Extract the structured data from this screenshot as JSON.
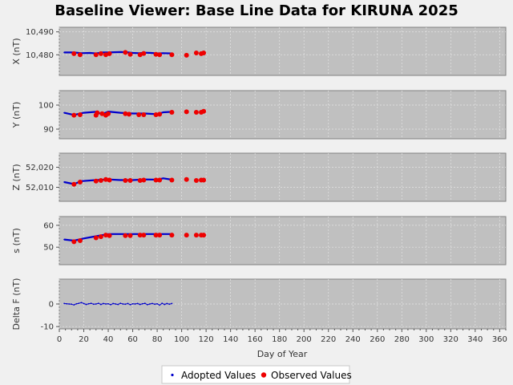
{
  "chart_data": {
    "type": "line",
    "title": "Baseline Viewer: Base Line Data for KIRUNA 2025",
    "xlabel": "Day of Year",
    "xlim": [
      0,
      365
    ],
    "xticks": [
      0,
      20,
      40,
      60,
      80,
      100,
      120,
      140,
      160,
      180,
      200,
      220,
      240,
      260,
      280,
      300,
      320,
      340,
      360
    ],
    "legend": {
      "placement": "bottom-center",
      "entries": [
        {
          "name": "Adopted Values",
          "color": "#0000cc",
          "marker": "small-dot"
        },
        {
          "name": "Observed Values",
          "color": "#ee0000",
          "marker": "dot"
        }
      ]
    },
    "panels": [
      {
        "ylabel": "X (nT)",
        "ylim": [
          10471,
          10492
        ],
        "yticks": [
          10480,
          10490
        ],
        "ytick_labels": [
          "10,480",
          "10,490"
        ],
        "adopted": {
          "x": [
            4,
            12,
            18,
            25,
            30,
            35,
            40,
            45,
            50,
            55,
            60,
            65,
            70,
            75,
            80,
            85,
            92
          ],
          "y": [
            10481.0,
            10481.0,
            10480.7,
            10480.8,
            10480.6,
            10481.0,
            10481.0,
            10481.1,
            10481.2,
            10481.1,
            10480.8,
            10480.7,
            10480.9,
            10480.8,
            10480.6,
            10480.7,
            10480.6
          ]
        },
        "observed": {
          "x": [
            12,
            17,
            30,
            34,
            38,
            41,
            54,
            58,
            66,
            69,
            79,
            82,
            92,
            104,
            112,
            116,
            118
          ],
          "y": [
            10480.5,
            10480.0,
            10480.0,
            10480.5,
            10480.0,
            10480.5,
            10481.0,
            10480.2,
            10480.0,
            10480.6,
            10480.2,
            10480.0,
            10480.0,
            10479.8,
            10480.8,
            10480.5,
            10480.8
          ]
        }
      },
      {
        "ylabel": "Y (nT)",
        "ylim": [
          86,
          106
        ],
        "yticks": [
          90,
          100
        ],
        "ytick_labels": [
          "90",
          "100"
        ],
        "adopted": {
          "x": [
            4,
            12,
            20,
            30,
            35,
            40,
            50,
            60,
            70,
            80,
            85,
            92
          ],
          "y": [
            96.8,
            95.9,
            96.8,
            97.2,
            96.2,
            97.3,
            96.8,
            96.5,
            96.5,
            96.2,
            97.0,
            97.2
          ]
        },
        "observed": {
          "x": [
            12,
            17,
            30,
            31,
            35,
            38,
            40,
            54,
            57,
            65,
            69,
            79,
            82,
            92,
            104,
            112,
            116,
            118
          ],
          "y": [
            95.8,
            96.0,
            95.8,
            96.8,
            96.4,
            95.8,
            96.4,
            96.4,
            96.2,
            96.0,
            96.0,
            96.0,
            96.2,
            97.0,
            97.2,
            97.0,
            97.0,
            97.4
          ]
        }
      },
      {
        "ylabel": "Z (nT)",
        "ylim": [
          52003,
          52027
        ],
        "yticks": [
          52010,
          52020
        ],
        "ytick_labels": [
          "52,010",
          "52,020"
        ],
        "adopted": {
          "x": [
            4,
            12,
            18,
            30,
            40,
            50,
            60,
            70,
            80,
            85,
            92
          ],
          "y": [
            52012.6,
            52011.6,
            52013.1,
            52013.6,
            52013.9,
            52013.6,
            52013.6,
            52013.9,
            52013.8,
            52014.5,
            52013.8
          ]
        },
        "observed": {
          "x": [
            12,
            17,
            30,
            34,
            38,
            41,
            54,
            58,
            66,
            69,
            79,
            82,
            92,
            104,
            112,
            116,
            118
          ],
          "y": [
            52011.5,
            52012.6,
            52013.1,
            52013.4,
            52013.9,
            52013.6,
            52013.4,
            52013.4,
            52013.4,
            52013.6,
            52013.6,
            52013.6,
            52013.6,
            52013.9,
            52013.4,
            52013.6,
            52013.6
          ]
        }
      },
      {
        "ylabel": "s (nT)",
        "ylim": [
          42,
          64
        ],
        "yticks": [
          50,
          60
        ],
        "ytick_labels": [
          "50",
          "60"
        ],
        "adopted": {
          "x": [
            4,
            12,
            20,
            30,
            35,
            40,
            50,
            60,
            70,
            80,
            85,
            92
          ],
          "y": [
            53.5,
            53.0,
            54.0,
            55.0,
            55.5,
            56.0,
            56.0,
            56.0,
            56.0,
            56.0,
            56.0,
            56.0
          ]
        },
        "observed": {
          "x": [
            12,
            17,
            30,
            34,
            38,
            41,
            54,
            58,
            66,
            69,
            79,
            82,
            92,
            104,
            112,
            116,
            118
          ],
          "y": [
            52.5,
            53.0,
            54.3,
            54.8,
            55.5,
            55.3,
            55.3,
            55.3,
            55.5,
            55.5,
            55.5,
            55.5,
            55.5,
            55.5,
            55.5,
            55.5,
            55.5
          ]
        }
      },
      {
        "ylabel": "Delta F (nT)",
        "ylim": [
          -11,
          11
        ],
        "yticks": [
          -10,
          0
        ],
        "ytick_labels": [
          "-10",
          "0"
        ],
        "adopted": {
          "x": [
            4,
            6,
            8,
            10,
            12,
            14,
            16,
            18,
            20,
            22,
            24,
            26,
            28,
            30,
            32,
            34,
            36,
            38,
            40,
            42,
            44,
            46,
            48,
            50,
            52,
            54,
            56,
            58,
            60,
            62,
            64,
            66,
            68,
            70,
            72,
            74,
            76,
            78,
            80,
            82,
            84,
            86,
            88,
            90,
            92
          ],
          "y": [
            0.2,
            0.1,
            0.0,
            -0.1,
            -0.4,
            0.1,
            0.3,
            0.6,
            0.2,
            -0.2,
            0.1,
            0.3,
            -0.1,
            0.0,
            0.3,
            -0.2,
            0.2,
            0.0,
            0.1,
            -0.3,
            0.2,
            0.0,
            -0.2,
            0.3,
            0.0,
            -0.1,
            0.2,
            -0.3,
            0.1,
            0.0,
            0.2,
            -0.2,
            0.1,
            0.3,
            -0.3,
            0.0,
            0.2,
            -0.1,
            0.1,
            -0.5,
            0.3,
            -0.2,
            0.2,
            -0.1,
            0.2
          ]
        },
        "observed": {
          "x": [],
          "y": []
        }
      }
    ]
  }
}
